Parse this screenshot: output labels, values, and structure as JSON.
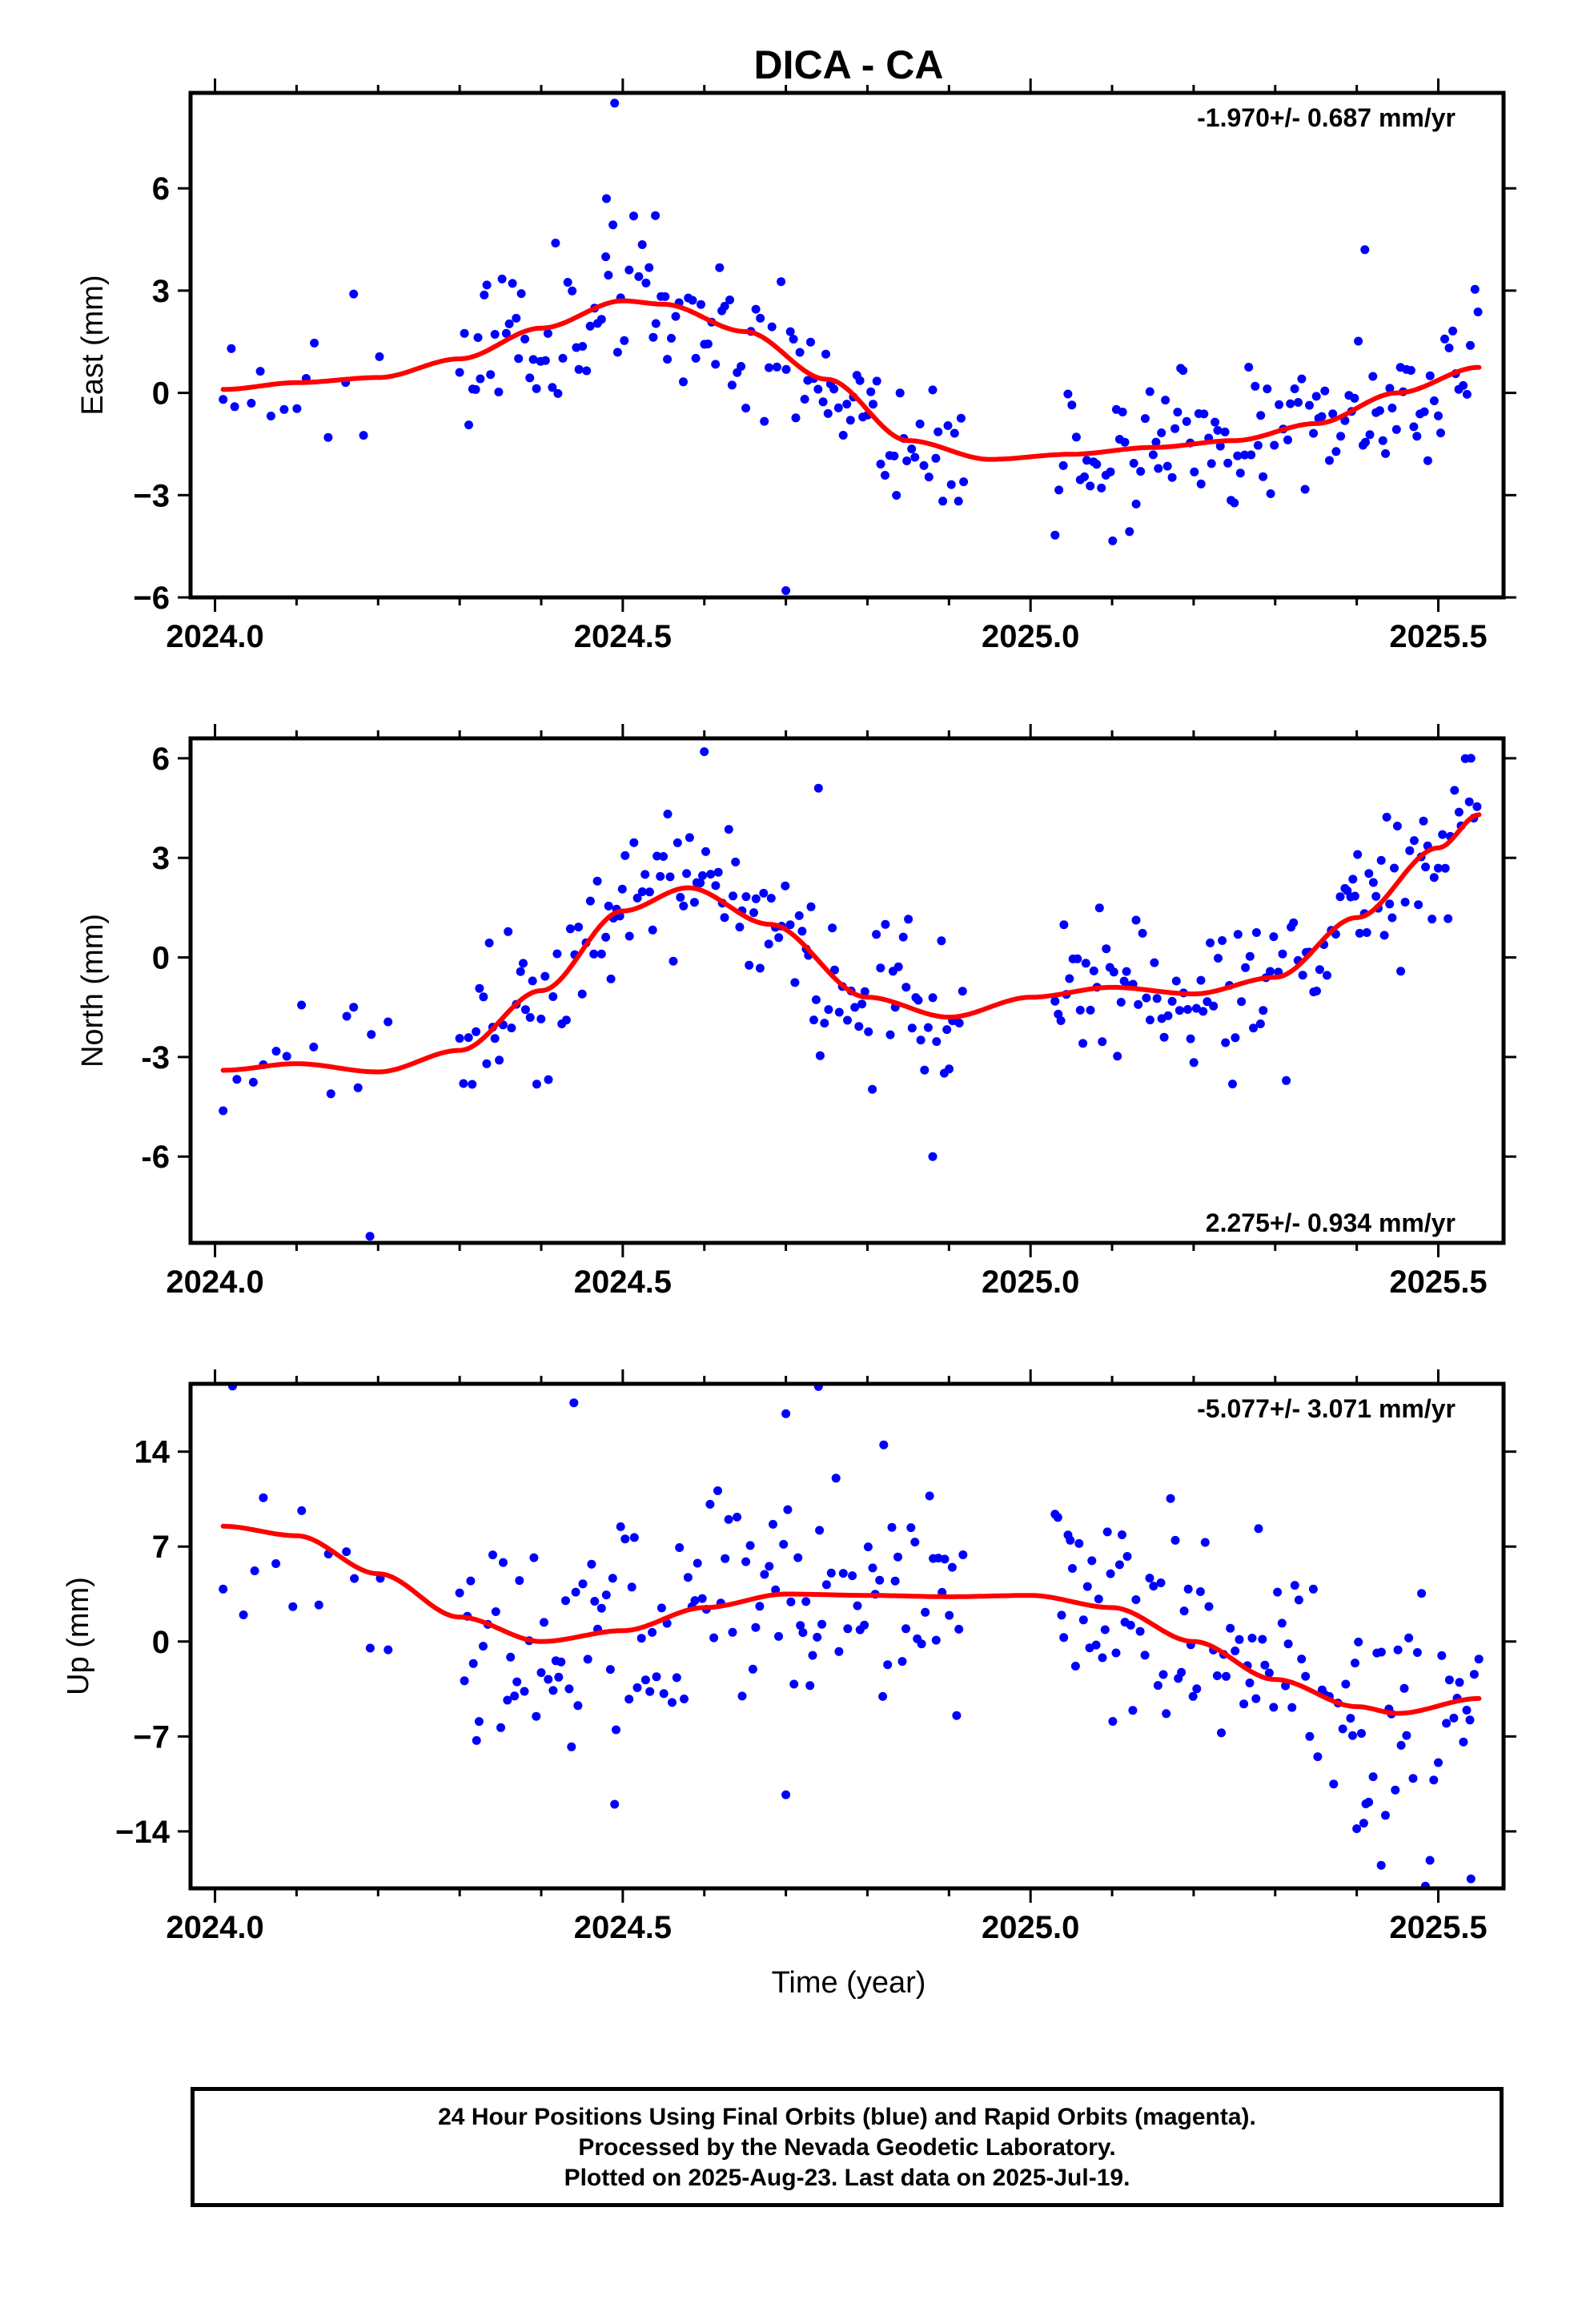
{
  "title": "DICA - CA",
  "xlabel": "Time (year)",
  "footer": {
    "line1": "24 Hour Positions Using Final Orbits (blue) and Rapid Orbits (magenta).",
    "line2": "Processed by the Nevada Geodetic Laboratory.",
    "line3": "Plotted on 2025-Aug-23. Last data on 2025-Jul-19."
  },
  "colors": {
    "points": "#0000ff",
    "fit": "#ff0000",
    "axes": "#000000"
  },
  "chart_data": [
    {
      "type": "scatter",
      "ylabel": "East (mm)",
      "rate_label": "-1.970+/- 0.687 mm/yr",
      "rate_position": "top-right",
      "xlim": [
        2023.97,
        2025.58
      ],
      "ylim": [
        -6,
        8.8
      ],
      "x_ticks": [
        2024.0,
        2024.5,
        2025.0,
        2025.5
      ],
      "x_tick_labels": [
        "2024.0",
        "2024.5",
        "2025.0",
        "2025.5"
      ],
      "y_ticks": [
        -6,
        -3,
        0,
        3,
        6
      ],
      "y_tick_labels": [
        "−6",
        "−3",
        "0",
        "3",
        "6"
      ],
      "fit_knots": [
        [
          2024.01,
          0.1
        ],
        [
          2024.1,
          0.3
        ],
        [
          2024.2,
          0.45
        ],
        [
          2024.3,
          1.0
        ],
        [
          2024.4,
          1.9
        ],
        [
          2024.5,
          2.7
        ],
        [
          2024.55,
          2.6
        ],
        [
          2024.65,
          1.8
        ],
        [
          2024.75,
          0.4
        ],
        [
          2024.85,
          -1.4
        ],
        [
          2024.95,
          -1.95
        ],
        [
          2025.05,
          -1.8
        ],
        [
          2025.15,
          -1.6
        ],
        [
          2025.25,
          -1.4
        ],
        [
          2025.35,
          -0.9
        ],
        [
          2025.45,
          0.0
        ],
        [
          2025.55,
          0.75
        ]
      ],
      "seed": 11,
      "gap": [
        2024.92,
        2025.03
      ],
      "noise": 1.05,
      "outliers": [
        [
          2024.49,
          8.5
        ],
        [
          2024.7,
          -5.8
        ],
        [
          2024.48,
          5.7
        ],
        [
          2024.54,
          5.2
        ],
        [
          2025.41,
          4.2
        ],
        [
          2024.17,
          2.9
        ],
        [
          2024.02,
          1.3
        ]
      ]
    },
    {
      "type": "scatter",
      "ylabel": "North (mm)",
      "rate_label": "2.275+/- 0.934 mm/yr",
      "rate_position": "bottom-right",
      "xlim": [
        2023.97,
        2025.58
      ],
      "ylim": [
        -8.6,
        6.6
      ],
      "x_ticks": [
        2024.0,
        2024.5,
        2025.0,
        2025.5
      ],
      "x_tick_labels": [
        "2024.0",
        "2024.5",
        "2025.0",
        "2025.5"
      ],
      "y_ticks": [
        -6,
        -3,
        0,
        3,
        6
      ],
      "y_tick_labels": [
        "-6",
        "-3",
        "0",
        "3",
        "6"
      ],
      "fit_knots": [
        [
          2024.01,
          -3.4
        ],
        [
          2024.1,
          -3.2
        ],
        [
          2024.2,
          -3.45
        ],
        [
          2024.3,
          -2.8
        ],
        [
          2024.4,
          -1.0
        ],
        [
          2024.5,
          1.4
        ],
        [
          2024.58,
          2.1
        ],
        [
          2024.68,
          1.0
        ],
        [
          2024.8,
          -1.2
        ],
        [
          2024.9,
          -1.8
        ],
        [
          2025.0,
          -1.2
        ],
        [
          2025.1,
          -0.9
        ],
        [
          2025.2,
          -1.1
        ],
        [
          2025.3,
          -0.6
        ],
        [
          2025.4,
          1.2
        ],
        [
          2025.5,
          3.3
        ],
        [
          2025.55,
          4.3
        ]
      ],
      "seed": 23,
      "gap": [
        2024.92,
        2025.03
      ],
      "noise": 1.1,
      "outliers": [
        [
          2024.19,
          -8.4
        ],
        [
          2024.6,
          6.2
        ],
        [
          2024.88,
          -6.0
        ],
        [
          2025.54,
          6.0
        ],
        [
          2024.74,
          5.1
        ],
        [
          2024.17,
          -1.5
        ]
      ]
    },
    {
      "type": "scatter",
      "ylabel": "Up (mm)",
      "rate_label": "-5.077+/- 3.071 mm/yr",
      "rate_position": "top-right",
      "xlim": [
        2023.97,
        2025.58
      ],
      "ylim": [
        -18.2,
        19
      ],
      "x_ticks": [
        2024.0,
        2024.5,
        2025.0,
        2025.5
      ],
      "x_tick_labels": [
        "2024.0",
        "2024.5",
        "2025.0",
        "2025.5"
      ],
      "y_ticks": [
        -14,
        -7,
        0,
        7,
        14
      ],
      "y_tick_labels": [
        "−14",
        "−7",
        "0",
        "7",
        "14"
      ],
      "fit_knots": [
        [
          2024.01,
          8.5
        ],
        [
          2024.1,
          7.8
        ],
        [
          2024.2,
          5.0
        ],
        [
          2024.3,
          1.8
        ],
        [
          2024.4,
          0.0
        ],
        [
          2024.5,
          0.8
        ],
        [
          2024.6,
          2.5
        ],
        [
          2024.7,
          3.5
        ],
        [
          2024.8,
          3.4
        ],
        [
          2024.9,
          3.3
        ],
        [
          2025.0,
          3.4
        ],
        [
          2025.1,
          2.5
        ],
        [
          2025.2,
          0.0
        ],
        [
          2025.3,
          -2.8
        ],
        [
          2025.4,
          -4.8
        ],
        [
          2025.45,
          -5.3
        ],
        [
          2025.55,
          -4.2
        ]
      ],
      "seed": 37,
      "gap": [
        2024.92,
        2025.03
      ],
      "noise": 4.2,
      "outliers": [
        [
          2024.44,
          17.6
        ],
        [
          2024.74,
          18.8
        ],
        [
          2024.7,
          16.8
        ],
        [
          2024.82,
          14.5
        ],
        [
          2024.49,
          -12.0
        ],
        [
          2025.43,
          -16.5
        ],
        [
          2025.54,
          -17.5
        ],
        [
          2024.7,
          -11.3
        ],
        [
          2025.4,
          -13.8
        ]
      ]
    }
  ]
}
